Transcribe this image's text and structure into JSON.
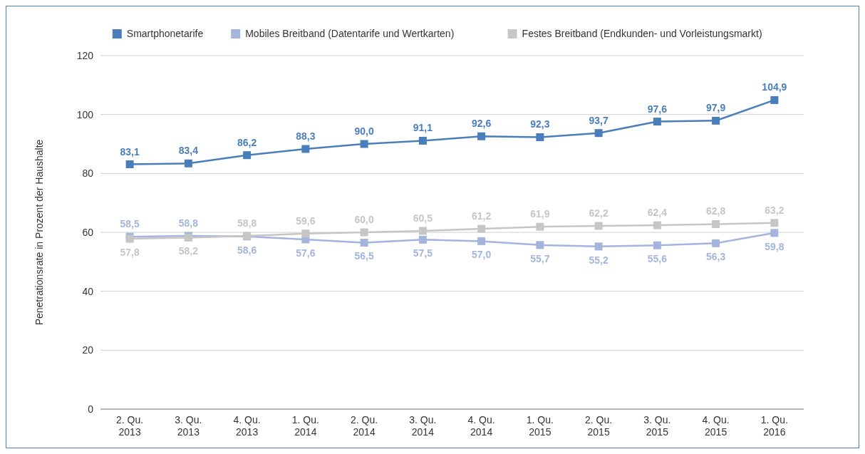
{
  "chart_data": {
    "type": "line",
    "ylabel": "Penetrationsrate in Prozent der Haushalte",
    "categories": [
      "2. Qu. 2013",
      "3. Qu. 2013",
      "4. Qu. 2013",
      "1. Qu. 2014",
      "2. Qu. 2014",
      "3. Qu. 2014",
      "4. Qu. 2014",
      "1. Qu. 2015",
      "2. Qu. 2015",
      "3. Qu. 2015",
      "4. Qu. 2015",
      "1. Qu. 2016"
    ],
    "series": [
      {
        "name": "Smartphonetarife",
        "color": "#4a7ebb",
        "values": [
          83.1,
          83.4,
          86.2,
          88.3,
          90.0,
          91.1,
          92.6,
          92.3,
          93.7,
          97.6,
          97.9,
          104.9
        ],
        "value_labels": [
          "83,1",
          "83,4",
          "86,2",
          "88,3",
          "90,0",
          "91,1",
          "92,6",
          "92,3",
          "93,7",
          "97,6",
          "97,9",
          "104,9"
        ]
      },
      {
        "name": "Mobiles Breitband (Datentarife und Wertkarten)",
        "color": "#a3b5dc",
        "values": [
          58.5,
          58.8,
          58.6,
          57.6,
          56.5,
          57.5,
          57.0,
          55.7,
          55.2,
          55.6,
          56.3,
          59.8
        ],
        "value_labels": [
          "58,5",
          "58,8",
          "58,6",
          "57,6",
          "56,5",
          "57,5",
          "57,0",
          "55,7",
          "55,2",
          "55,6",
          "56,3",
          "59,8"
        ]
      },
      {
        "name": "Festes Breitband (Endkunden- und Vorleistungsmarkt)",
        "color": "#c6c6c6",
        "values": [
          57.8,
          58.2,
          58.8,
          59.6,
          60.0,
          60.5,
          61.2,
          61.9,
          62.2,
          62.4,
          62.8,
          63.2
        ],
        "value_labels": [
          "57,8",
          "58,2",
          "58,8",
          "59,6",
          "60,0",
          "60,5",
          "61,2",
          "61,9",
          "62,2",
          "62,4",
          "62,8",
          "63,2"
        ]
      }
    ],
    "ylim": [
      0,
      120
    ],
    "yticks": [
      0,
      20,
      40,
      60,
      80,
      100,
      120
    ],
    "grid": "y",
    "legend": "top",
    "marker": "square",
    "line_style": "solid"
  }
}
